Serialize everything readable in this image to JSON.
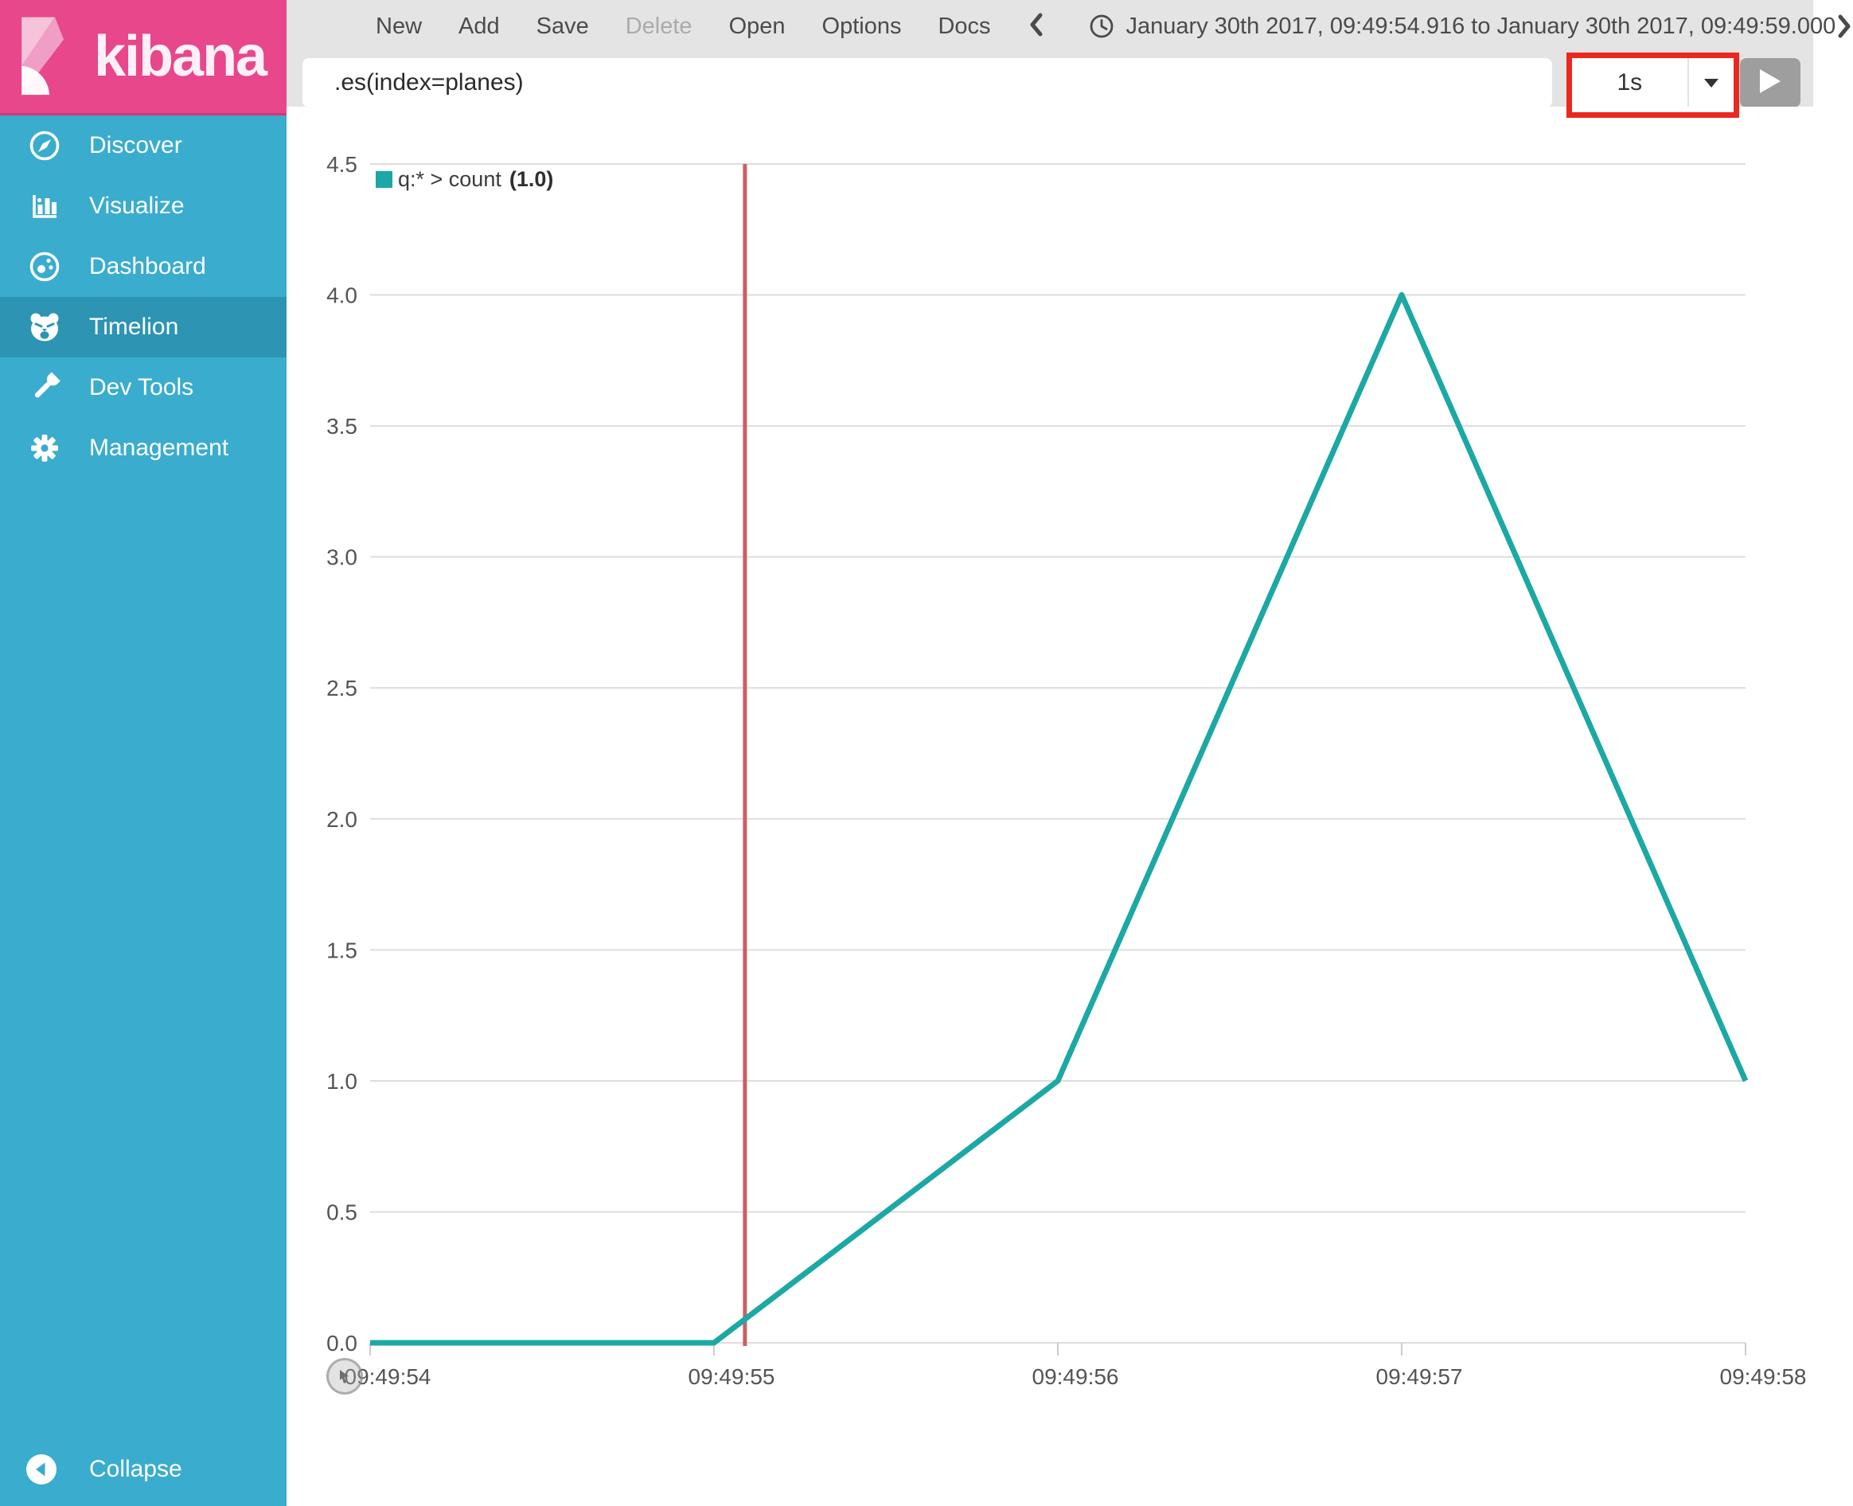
{
  "app": {
    "brand": "kibana"
  },
  "toolbar": {
    "items": [
      {
        "label": "New",
        "enabled": true
      },
      {
        "label": "Add",
        "enabled": true
      },
      {
        "label": "Save",
        "enabled": true
      },
      {
        "label": "Delete",
        "enabled": false
      },
      {
        "label": "Open",
        "enabled": true
      },
      {
        "label": "Options",
        "enabled": true
      },
      {
        "label": "Docs",
        "enabled": true
      }
    ],
    "time_range": "January 30th 2017, 09:49:54.916 to January 30th 2017, 09:49:59.000"
  },
  "query": {
    "value": ".es(index=planes)",
    "interval": "1s"
  },
  "sidebar": {
    "items": [
      {
        "label": "Discover",
        "icon": "compass-icon",
        "active": false
      },
      {
        "label": "Visualize",
        "icon": "bar-chart-icon",
        "active": false
      },
      {
        "label": "Dashboard",
        "icon": "gauge-icon",
        "active": false
      },
      {
        "label": "Timelion",
        "icon": "timelion-icon",
        "active": true
      },
      {
        "label": "Dev Tools",
        "icon": "wrench-icon",
        "active": false
      },
      {
        "label": "Management",
        "icon": "gear-icon",
        "active": false
      }
    ],
    "collapse_label": "Collapse"
  },
  "chart_data": {
    "type": "line",
    "title": "",
    "x": [
      "09:49:54",
      "09:49:55",
      "09:49:56",
      "09:49:57",
      "09:49:58"
    ],
    "series": [
      {
        "name": "q:* > count",
        "color": "#1CA8A4",
        "values": [
          0,
          0,
          1,
          4,
          1
        ]
      }
    ],
    "legend": {
      "label": "q:* > count",
      "value": "(1.0)",
      "position": "top-left"
    },
    "ylim": [
      0,
      4.5
    ],
    "yticks": [
      0.0,
      0.5,
      1.0,
      1.5,
      2.0,
      2.5,
      3.0,
      3.5,
      4.0,
      4.5
    ],
    "grid": true,
    "marker": {
      "x_index": 1.09,
      "color": "#C86064",
      "note": "vertical time marker just after 09:49:55"
    }
  },
  "colors": {
    "brand_pink": "#E8488B",
    "sidebar_blue": "#3AACCD",
    "sidebar_active": "#2D94B4",
    "toolbar_bg": "#E4E4E4",
    "series_teal": "#1CA8A4",
    "marker_red": "#C86064",
    "annotation_red": "#EC281E",
    "grid_line": "#DDDDDD",
    "axis_text": "#545454"
  }
}
